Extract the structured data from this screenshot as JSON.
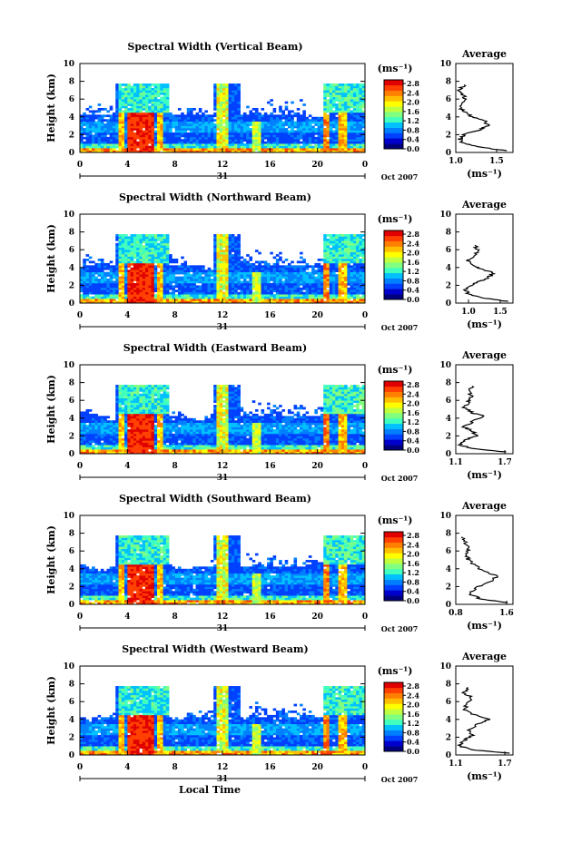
{
  "chart_data": [
    {
      "type": "heatmap",
      "title": "Spectral Width (Vertical Beam)",
      "ylabel": "Height (km)",
      "yticks": [
        "0",
        "2",
        "4",
        "6",
        "8",
        "10"
      ],
      "xticks": [
        "0",
        "4",
        "8",
        "12",
        "16",
        "20",
        "0"
      ],
      "date_label": "31",
      "month_label": "Oct 2007",
      "colorbar": {
        "unit_label": "(ms⁻¹)",
        "ticks": [
          "2.8",
          "2.4",
          "2.0",
          "1.6",
          "1.2",
          "0.8",
          "0.4",
          "0.0"
        ]
      },
      "average": {
        "title": "Average",
        "xlabel": "(ms⁻¹)",
        "xticks": [
          "1.0",
          "1.5"
        ],
        "yticks": [
          "0",
          "2",
          "4",
          "6",
          "8",
          "10"
        ],
        "xlim": [
          1.0,
          1.7
        ],
        "profile": [
          [
            1.6,
            0.2
          ],
          [
            1.3,
            0.6
          ],
          [
            1.1,
            1.0
          ],
          [
            1.05,
            1.5
          ],
          [
            1.1,
            2.0
          ],
          [
            1.3,
            2.6
          ],
          [
            1.4,
            3.0
          ],
          [
            1.35,
            3.6
          ],
          [
            1.2,
            4.0
          ],
          [
            1.1,
            4.6
          ],
          [
            1.05,
            5.2
          ],
          [
            1.1,
            5.8
          ],
          [
            1.1,
            6.4
          ],
          [
            1.05,
            7.0
          ],
          [
            1.1,
            7.6
          ]
        ]
      }
    },
    {
      "type": "heatmap",
      "title": "Spectral Width (Northward Beam)",
      "ylabel": "Height (km)",
      "yticks": [
        "0",
        "2",
        "4",
        "6",
        "8",
        "10"
      ],
      "xticks": [
        "0",
        "4",
        "8",
        "12",
        "16",
        "20",
        "0"
      ],
      "date_label": "31",
      "month_label": "Oct 2007",
      "colorbar": {
        "unit_label": "(ms⁻¹)",
        "ticks": [
          "2.8",
          "2.4",
          "2.0",
          "1.6",
          "1.2",
          "0.8",
          "0.4",
          "0.0"
        ]
      },
      "average": {
        "title": "Average",
        "xlabel": "(ms⁻¹)",
        "xticks": [
          "1.0",
          "1.5"
        ],
        "yticks": [
          "0",
          "2",
          "4",
          "6",
          "8",
          "10"
        ],
        "xlim": [
          0.8,
          1.7
        ],
        "profile": [
          [
            1.6,
            0.2
          ],
          [
            1.2,
            0.6
          ],
          [
            1.0,
            1.0
          ],
          [
            0.95,
            1.6
          ],
          [
            1.1,
            2.2
          ],
          [
            1.3,
            2.8
          ],
          [
            1.4,
            3.4
          ],
          [
            1.2,
            3.8
          ],
          [
            1.05,
            4.2
          ],
          [
            1.0,
            4.8
          ],
          [
            1.1,
            5.4
          ],
          [
            1.15,
            6.0
          ],
          [
            1.1,
            6.5
          ]
        ]
      }
    },
    {
      "type": "heatmap",
      "title": "Spectral Width (Eastward Beam)",
      "ylabel": "Height (km)",
      "yticks": [
        "0",
        "2",
        "4",
        "6",
        "8",
        "10"
      ],
      "xticks": [
        "0",
        "4",
        "8",
        "12",
        "16",
        "20",
        "0"
      ],
      "date_label": "31",
      "month_label": "Oct 2007",
      "colorbar": {
        "unit_label": "(ms⁻¹)",
        "ticks": [
          "2.8",
          "2.4",
          "2.0",
          "1.6",
          "1.2",
          "0.8",
          "0.4",
          "0.0"
        ]
      },
      "average": {
        "title": "Average",
        "xlabel": "(ms⁻¹)",
        "xticks": [
          "1.1",
          "1.7"
        ],
        "yticks": [
          "0",
          "2",
          "4",
          "6",
          "8",
          "10"
        ],
        "xlim": [
          1.1,
          1.8
        ],
        "profile": [
          [
            1.7,
            0.2
          ],
          [
            1.3,
            0.6
          ],
          [
            1.15,
            1.0
          ],
          [
            1.2,
            1.5
          ],
          [
            1.35,
            2.0
          ],
          [
            1.3,
            2.6
          ],
          [
            1.2,
            3.0
          ],
          [
            1.3,
            3.6
          ],
          [
            1.45,
            4.2
          ],
          [
            1.3,
            4.6
          ],
          [
            1.2,
            5.2
          ],
          [
            1.25,
            5.8
          ],
          [
            1.3,
            6.4
          ],
          [
            1.25,
            7.0
          ],
          [
            1.3,
            7.6
          ]
        ]
      }
    },
    {
      "type": "heatmap",
      "title": "Spectral Width (Southward Beam)",
      "ylabel": "Height (km)",
      "yticks": [
        "0",
        "2",
        "4",
        "6",
        "8",
        "10"
      ],
      "xticks": [
        "0",
        "4",
        "8",
        "12",
        "16",
        "20",
        "0"
      ],
      "date_label": "31",
      "month_label": "Oct 2007",
      "colorbar": {
        "unit_label": "(ms⁻¹)",
        "ticks": [
          "2.8",
          "2.4",
          "2.0",
          "1.6",
          "1.2",
          "0.8",
          "0.4",
          "0.0"
        ]
      },
      "average": {
        "title": "Average",
        "xlabel": "(ms⁻¹)",
        "xticks": [
          "0.8",
          "1.6"
        ],
        "yticks": [
          "0",
          "2",
          "4",
          "6",
          "8",
          "10"
        ],
        "xlim": [
          0.8,
          1.7
        ],
        "profile": [
          [
            1.6,
            0.2
          ],
          [
            1.2,
            0.6
          ],
          [
            1.0,
            1.2
          ],
          [
            1.1,
            1.8
          ],
          [
            1.3,
            2.4
          ],
          [
            1.45,
            3.2
          ],
          [
            1.2,
            3.8
          ],
          [
            1.1,
            4.4
          ],
          [
            1.0,
            5.0
          ],
          [
            0.95,
            5.6
          ],
          [
            1.0,
            6.2
          ],
          [
            0.95,
            7.0
          ],
          [
            0.9,
            7.6
          ]
        ]
      }
    },
    {
      "type": "heatmap",
      "title": "Spectral Width (Westward Beam)",
      "ylabel": "Height (km)",
      "yticks": [
        "0",
        "2",
        "4",
        "6",
        "8",
        "10"
      ],
      "xticks": [
        "0",
        "4",
        "8",
        "12",
        "16",
        "20",
        "0"
      ],
      "date_label": "31",
      "month_label": "Oct 2007",
      "xlabel": "Local Time",
      "colorbar": {
        "unit_label": "(ms⁻¹)",
        "ticks": [
          "2.8",
          "2.4",
          "2.0",
          "1.6",
          "1.2",
          "0.8",
          "0.4",
          "0.0"
        ]
      },
      "average": {
        "title": "Average",
        "xlabel": "(ms⁻¹)",
        "xticks": [
          "1.1",
          "1.7"
        ],
        "yticks": [
          "0",
          "2",
          "4",
          "6",
          "8",
          "10"
        ],
        "xlim": [
          1.1,
          1.8
        ],
        "profile": [
          [
            1.75,
            0.2
          ],
          [
            1.3,
            0.6
          ],
          [
            1.15,
            1.0
          ],
          [
            1.2,
            1.6
          ],
          [
            1.3,
            2.2
          ],
          [
            1.25,
            2.8
          ],
          [
            1.35,
            3.4
          ],
          [
            1.5,
            4.0
          ],
          [
            1.3,
            4.6
          ],
          [
            1.2,
            5.2
          ],
          [
            1.25,
            5.8
          ],
          [
            1.3,
            6.4
          ],
          [
            1.2,
            7.0
          ],
          [
            1.25,
            7.6
          ]
        ]
      }
    }
  ],
  "colors": {
    "scale": [
      "#00007f",
      "#0000cc",
      "#0040ff",
      "#0080ff",
      "#00c0ff",
      "#40ffbf",
      "#80ff80",
      "#c0ff40",
      "#ffff00",
      "#ffbf00",
      "#ff8000",
      "#ff4000",
      "#e00000"
    ],
    "axis": "#000000",
    "background": "#ffffff"
  }
}
